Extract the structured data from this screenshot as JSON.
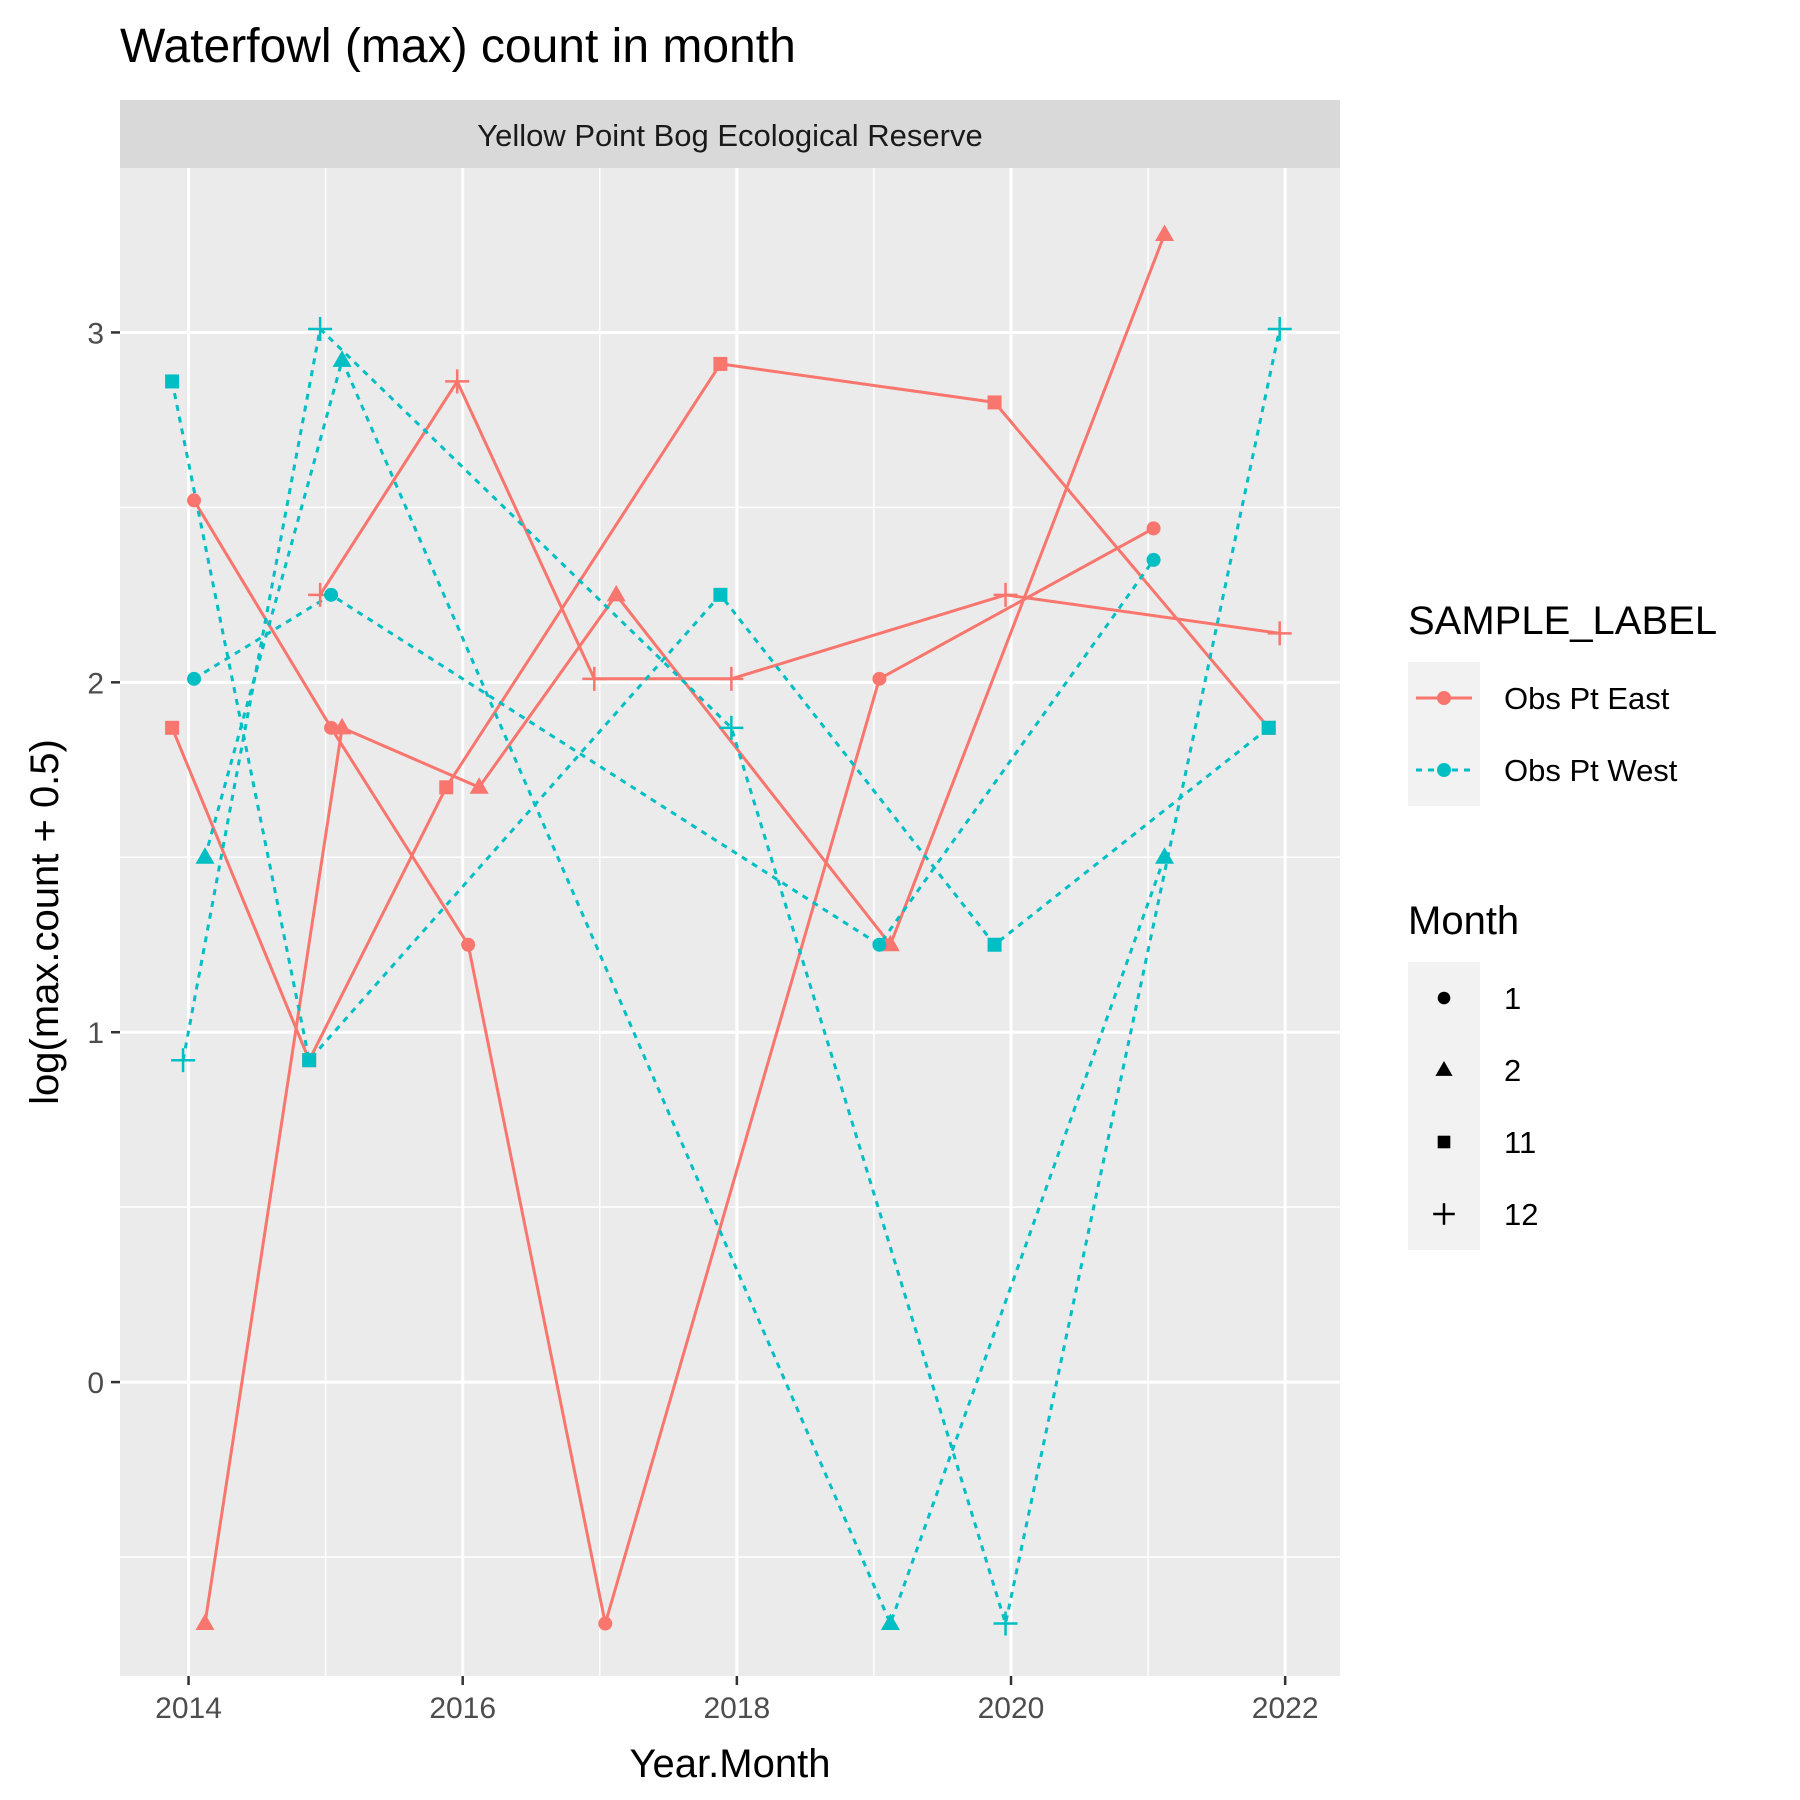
{
  "colors": {
    "panel_bg": "#EBEBEB",
    "strip_bg": "#D9D9D9",
    "grid": "#FFFFFF",
    "east": "#F8766D",
    "west": "#00BFC4"
  },
  "chart_data": {
    "type": "line",
    "title": "Waterfowl (max) count in month",
    "facet": "Yellow Point Bog Ecological Reserve",
    "xlabel": "Year.Month",
    "ylabel": "log(max.count + 0.5)",
    "x_ticks": [
      2014,
      2016,
      2018,
      2020,
      2022
    ],
    "y_ticks": [
      0,
      1,
      2,
      3
    ],
    "xlim": [
      2013.5,
      2022.4
    ],
    "ylim": [
      -0.84,
      3.47
    ],
    "grid": true,
    "legend_position": "right",
    "legends": [
      {
        "title": "SAMPLE_LABEL",
        "key": "color_linetype",
        "entries": [
          {
            "label": "Obs Pt East",
            "color_key": "east",
            "dash": "solid"
          },
          {
            "label": "Obs Pt West",
            "color_key": "west",
            "dash": "dotted"
          }
        ]
      },
      {
        "title": "Month",
        "key": "shape",
        "entries": [
          {
            "label": "1",
            "shape": "circle"
          },
          {
            "label": "2",
            "shape": "triangle"
          },
          {
            "label": "11",
            "shape": "square"
          },
          {
            "label": "12",
            "shape": "plus"
          }
        ]
      }
    ],
    "series": [
      {
        "group": "Obs Pt East",
        "month": "1",
        "color_key": "east",
        "dash": "solid",
        "shape": "circle",
        "points": [
          [
            2014.04,
            2.52
          ],
          [
            2015.04,
            1.87
          ],
          [
            2016.04,
            1.25
          ],
          [
            2017.04,
            -0.69
          ],
          [
            2019.04,
            2.01
          ],
          [
            2021.04,
            2.44
          ]
        ]
      },
      {
        "group": "Obs Pt East",
        "month": "2",
        "color_key": "east",
        "dash": "solid",
        "shape": "triangle",
        "points": [
          [
            2014.12,
            -0.69
          ],
          [
            2015.12,
            1.87
          ],
          [
            2016.12,
            1.7
          ],
          [
            2017.12,
            2.25
          ],
          [
            2019.12,
            1.25
          ],
          [
            2021.12,
            3.28
          ]
        ]
      },
      {
        "group": "Obs Pt East",
        "month": "11",
        "color_key": "east",
        "dash": "solid",
        "shape": "square",
        "points": [
          [
            2013.88,
            1.87
          ],
          [
            2014.88,
            0.92
          ],
          [
            2015.88,
            1.7
          ],
          [
            2017.88,
            2.91
          ],
          [
            2019.88,
            2.8
          ],
          [
            2021.88,
            1.87
          ]
        ]
      },
      {
        "group": "Obs Pt East",
        "month": "12",
        "color_key": "east",
        "dash": "solid",
        "shape": "plus",
        "points": [
          [
            2014.96,
            2.25
          ],
          [
            2015.96,
            2.86
          ],
          [
            2016.96,
            2.01
          ],
          [
            2017.96,
            2.01
          ],
          [
            2019.96,
            2.25
          ],
          [
            2021.96,
            2.14
          ]
        ]
      },
      {
        "group": "Obs Pt West",
        "month": "1",
        "color_key": "west",
        "dash": "dotted",
        "shape": "circle",
        "points": [
          [
            2014.04,
            2.01
          ],
          [
            2015.04,
            2.25
          ],
          [
            2019.04,
            1.25
          ],
          [
            2021.04,
            2.35
          ]
        ]
      },
      {
        "group": "Obs Pt West",
        "month": "2",
        "color_key": "west",
        "dash": "dotted",
        "shape": "triangle",
        "points": [
          [
            2014.12,
            1.5
          ],
          [
            2015.12,
            2.92
          ],
          [
            2019.12,
            -0.69
          ],
          [
            2021.12,
            1.5
          ]
        ]
      },
      {
        "group": "Obs Pt West",
        "month": "11",
        "color_key": "west",
        "dash": "dotted",
        "shape": "square",
        "points": [
          [
            2013.88,
            2.86
          ],
          [
            2014.88,
            0.92
          ],
          [
            2017.88,
            2.25
          ],
          [
            2019.88,
            1.25
          ],
          [
            2021.88,
            1.87
          ]
        ]
      },
      {
        "group": "Obs Pt West",
        "month": "12",
        "color_key": "west",
        "dash": "dotted",
        "shape": "plus",
        "points": [
          [
            2013.96,
            0.92
          ],
          [
            2014.96,
            3.01
          ],
          [
            2017.96,
            1.87
          ],
          [
            2019.96,
            -0.69
          ],
          [
            2021.96,
            3.01
          ]
        ]
      }
    ]
  }
}
